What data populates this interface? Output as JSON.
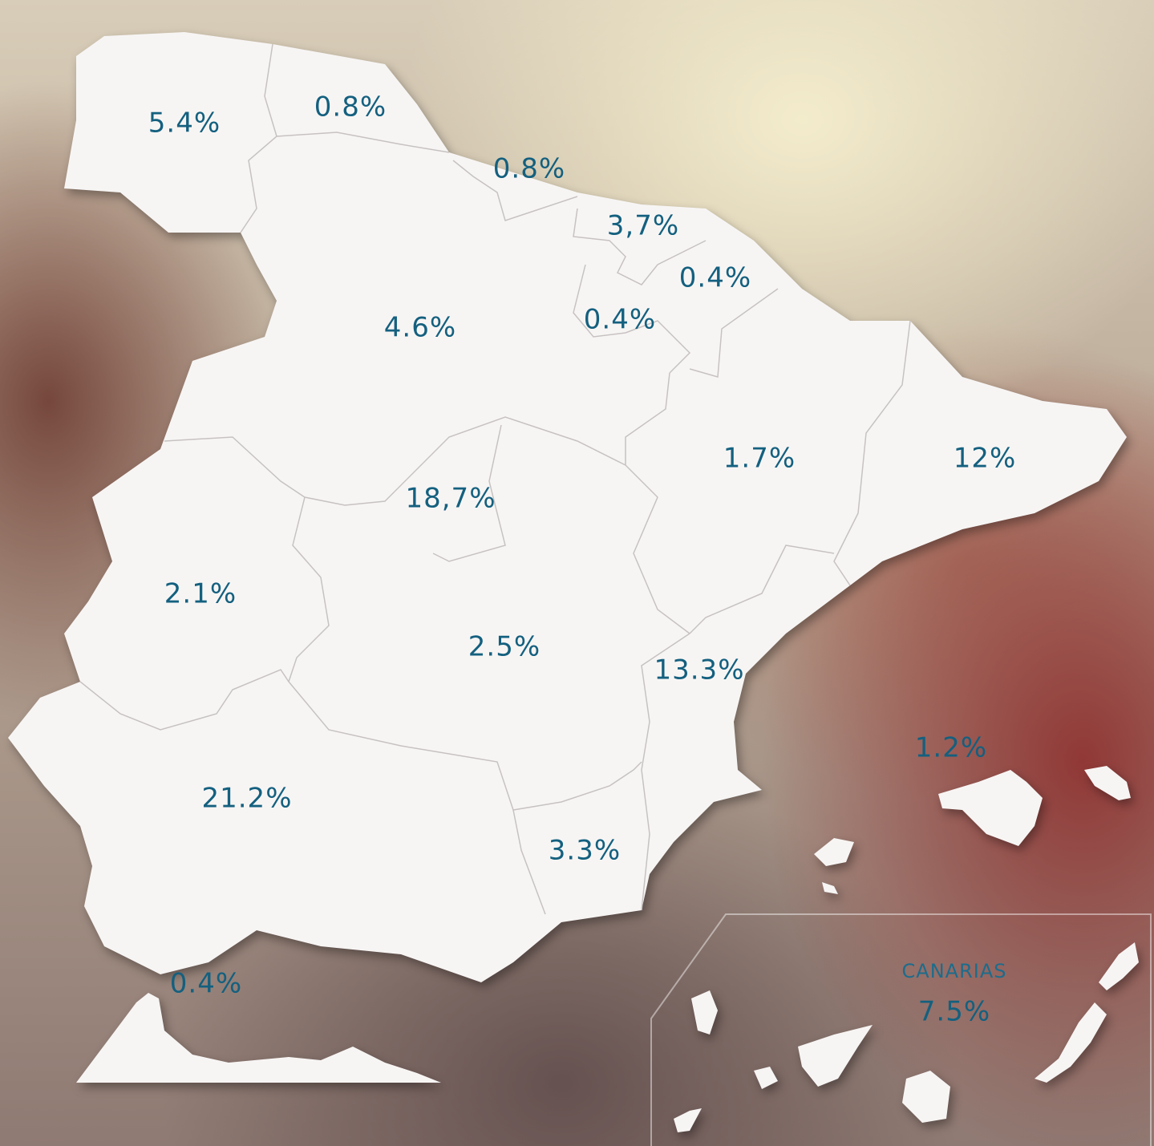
{
  "regions": [
    {
      "label": "5.4%"
    },
    {
      "label": "0.8%"
    },
    {
      "label": "0.8%"
    },
    {
      "label": "3,7%"
    },
    {
      "label": "0.4%"
    },
    {
      "label": "0.4%"
    },
    {
      "label": "4.6%"
    },
    {
      "label": "1.7%"
    },
    {
      "label": "12%"
    },
    {
      "label": "18,7%"
    },
    {
      "label": "2.1%"
    },
    {
      "label": "2.5%"
    },
    {
      "label": "13.3%"
    },
    {
      "label": "1.2%"
    },
    {
      "label": "21.2%"
    },
    {
      "label": "3.3%"
    },
    {
      "label": "0.4%"
    }
  ],
  "canarias": {
    "name": "CANARIAS",
    "label": "7.5%"
  }
}
